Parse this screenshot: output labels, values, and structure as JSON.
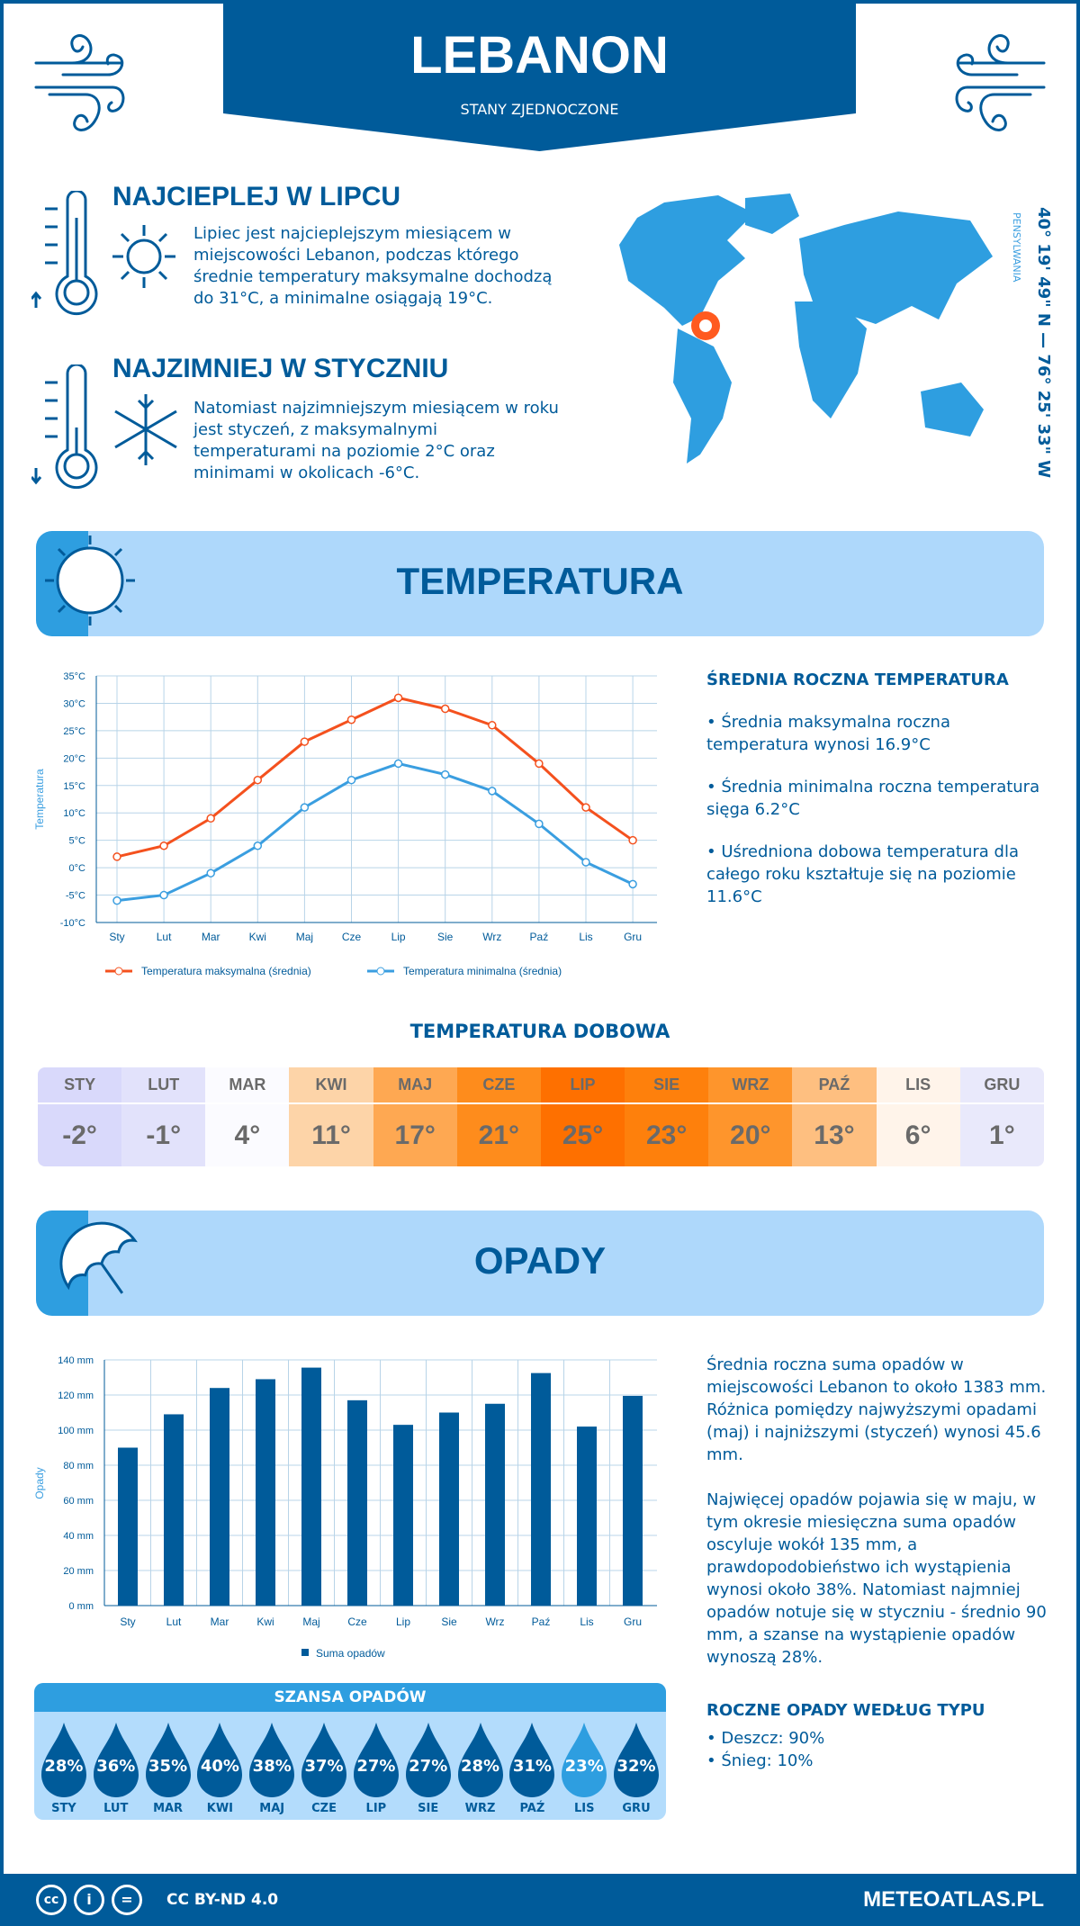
{
  "header": {
    "title": "LEBANON",
    "subtitle": "STANY ZJEDNOCZONE"
  },
  "warmest": {
    "title": "NAJCIEPLEJ W LIPCU",
    "text": "Lipiec jest najcieplejszym miesiącem w miejscowości Lebanon, podczas którego średnie temperatury maksymalne dochodzą do 31°C, a minimalne osiągają 19°C."
  },
  "coldest": {
    "title": "NAJZIMNIEJ W STYCZNIU",
    "text": "Natomiast najzimniejszym miesiącem w roku jest styczeń, z maksymalnymi temperaturami na poziomie 2°C oraz minimami w okolicach -6°C."
  },
  "location": {
    "coords": "40° 19' 49\" N — 76° 25' 33\" W",
    "region": "PENSYLWANIA"
  },
  "temperature": {
    "banner": "TEMPERATURA",
    "summary_title": "ŚREDNIA ROCZNA TEMPERATURA",
    "summary": [
      "• Średnia maksymalna roczna temperatura wynosi 16.9°C",
      "• Średnia minimalna roczna temperatura sięga 6.2°C",
      "• Uśredniona dobowa temperatura dla całego roku kształtuje się na poziomie 11.6°C"
    ],
    "daily_title": "TEMPERATURA DOBOWA",
    "daily": [
      {
        "m": "STY",
        "v": "-2°",
        "bg": "#d9d9fb"
      },
      {
        "m": "LUT",
        "v": "-1°",
        "bg": "#e2e2fb"
      },
      {
        "m": "MAR",
        "v": "4°",
        "bg": "#fbfbff"
      },
      {
        "m": "KWI",
        "v": "11°",
        "bg": "#fdd4a8"
      },
      {
        "m": "MAJ",
        "v": "17°",
        "bg": "#fea852"
      },
      {
        "m": "CZE",
        "v": "21°",
        "bg": "#fe8c1c"
      },
      {
        "m": "LIP",
        "v": "25°",
        "bg": "#fe7000"
      },
      {
        "m": "SIE",
        "v": "23°",
        "bg": "#fe800c"
      },
      {
        "m": "WRZ",
        "v": "20°",
        "bg": "#fe952c"
      },
      {
        "m": "PAŹ",
        "v": "13°",
        "bg": "#febf80"
      },
      {
        "m": "LIS",
        "v": "6°",
        "bg": "#fff4ea"
      },
      {
        "m": "GRU",
        "v": "1°",
        "bg": "#e9e9fb"
      }
    ]
  },
  "chart_data": [
    {
      "type": "line",
      "ylabel": "Temperatura",
      "categories": [
        "Sty",
        "Lut",
        "Mar",
        "Kwi",
        "Maj",
        "Cze",
        "Lip",
        "Sie",
        "Wrz",
        "Paź",
        "Lis",
        "Gru"
      ],
      "ylim": [
        -10,
        35
      ],
      "yticks": [
        "-10°C",
        "-5°C",
        "0°C",
        "5°C",
        "10°C",
        "15°C",
        "20°C",
        "25°C",
        "30°C",
        "35°C"
      ],
      "grid": true,
      "legend": "bottom",
      "series": [
        {
          "name": "Temperatura maksymalna (średnia)",
          "color": "#f4511e",
          "values": [
            2,
            4,
            9,
            16,
            23,
            27,
            31,
            29,
            26,
            19,
            11,
            5
          ]
        },
        {
          "name": "Temperatura minimalna (średnia)",
          "color": "#3a9ee0",
          "values": [
            -6,
            -5,
            -1,
            4,
            11,
            16,
            19,
            17,
            14,
            8,
            1,
            -3
          ]
        }
      ]
    },
    {
      "type": "bar",
      "ylabel": "Opady",
      "categories": [
        "Sty",
        "Lut",
        "Mar",
        "Kwi",
        "Maj",
        "Cze",
        "Lip",
        "Sie",
        "Wrz",
        "Paź",
        "Lis",
        "Gru"
      ],
      "ylim": [
        0,
        140
      ],
      "yticks": [
        "0 mm",
        "20 mm",
        "40 mm",
        "60 mm",
        "80 mm",
        "100 mm",
        "120 mm",
        "140 mm"
      ],
      "grid": true,
      "legend": "bottom",
      "series": [
        {
          "name": "Suma opadów",
          "color": "#005b9a",
          "values": [
            90,
            109,
            124,
            129,
            135.6,
            117,
            103,
            110,
            115,
            132.5,
            102,
            119.5
          ]
        }
      ]
    }
  ],
  "precip": {
    "banner": "OPADY",
    "text1": "Średnia roczna suma opadów w miejscowości Lebanon to około 1383 mm. Różnica pomiędzy najwyższymi opadami (maj) i najniższymi (styczeń) wynosi 45.6 mm.",
    "text2": "Najwięcej opadów pojawia się w maju, w tym okresie miesięczna suma opadów oscyluje wokół 135 mm, a prawdopodobieństwo ich wystąpienia wynosi około 38%. Natomiast najmniej opadów notuje się w styczniu - średnio 90 mm, a szanse na wystąpienie opadów wynoszą 28%.",
    "type_title": "ROCZNE OPADY WEDŁUG TYPU",
    "types": [
      "• Deszcz: 90%",
      "• Śnieg: 10%"
    ],
    "chance_title": "SZANSA OPADÓW",
    "chance": [
      {
        "m": "STY",
        "v": "28%"
      },
      {
        "m": "LUT",
        "v": "36%"
      },
      {
        "m": "MAR",
        "v": "35%"
      },
      {
        "m": "KWI",
        "v": "40%"
      },
      {
        "m": "MAJ",
        "v": "38%"
      },
      {
        "m": "CZE",
        "v": "37%"
      },
      {
        "m": "LIP",
        "v": "27%"
      },
      {
        "m": "SIE",
        "v": "27%"
      },
      {
        "m": "WRZ",
        "v": "28%"
      },
      {
        "m": "PAŹ",
        "v": "31%"
      },
      {
        "m": "LIS",
        "v": "23%",
        "light": true
      },
      {
        "m": "GRU",
        "v": "32%"
      }
    ]
  },
  "footer": {
    "license": "CC BY-ND 4.0",
    "site": "METEOATLAS.PL"
  }
}
